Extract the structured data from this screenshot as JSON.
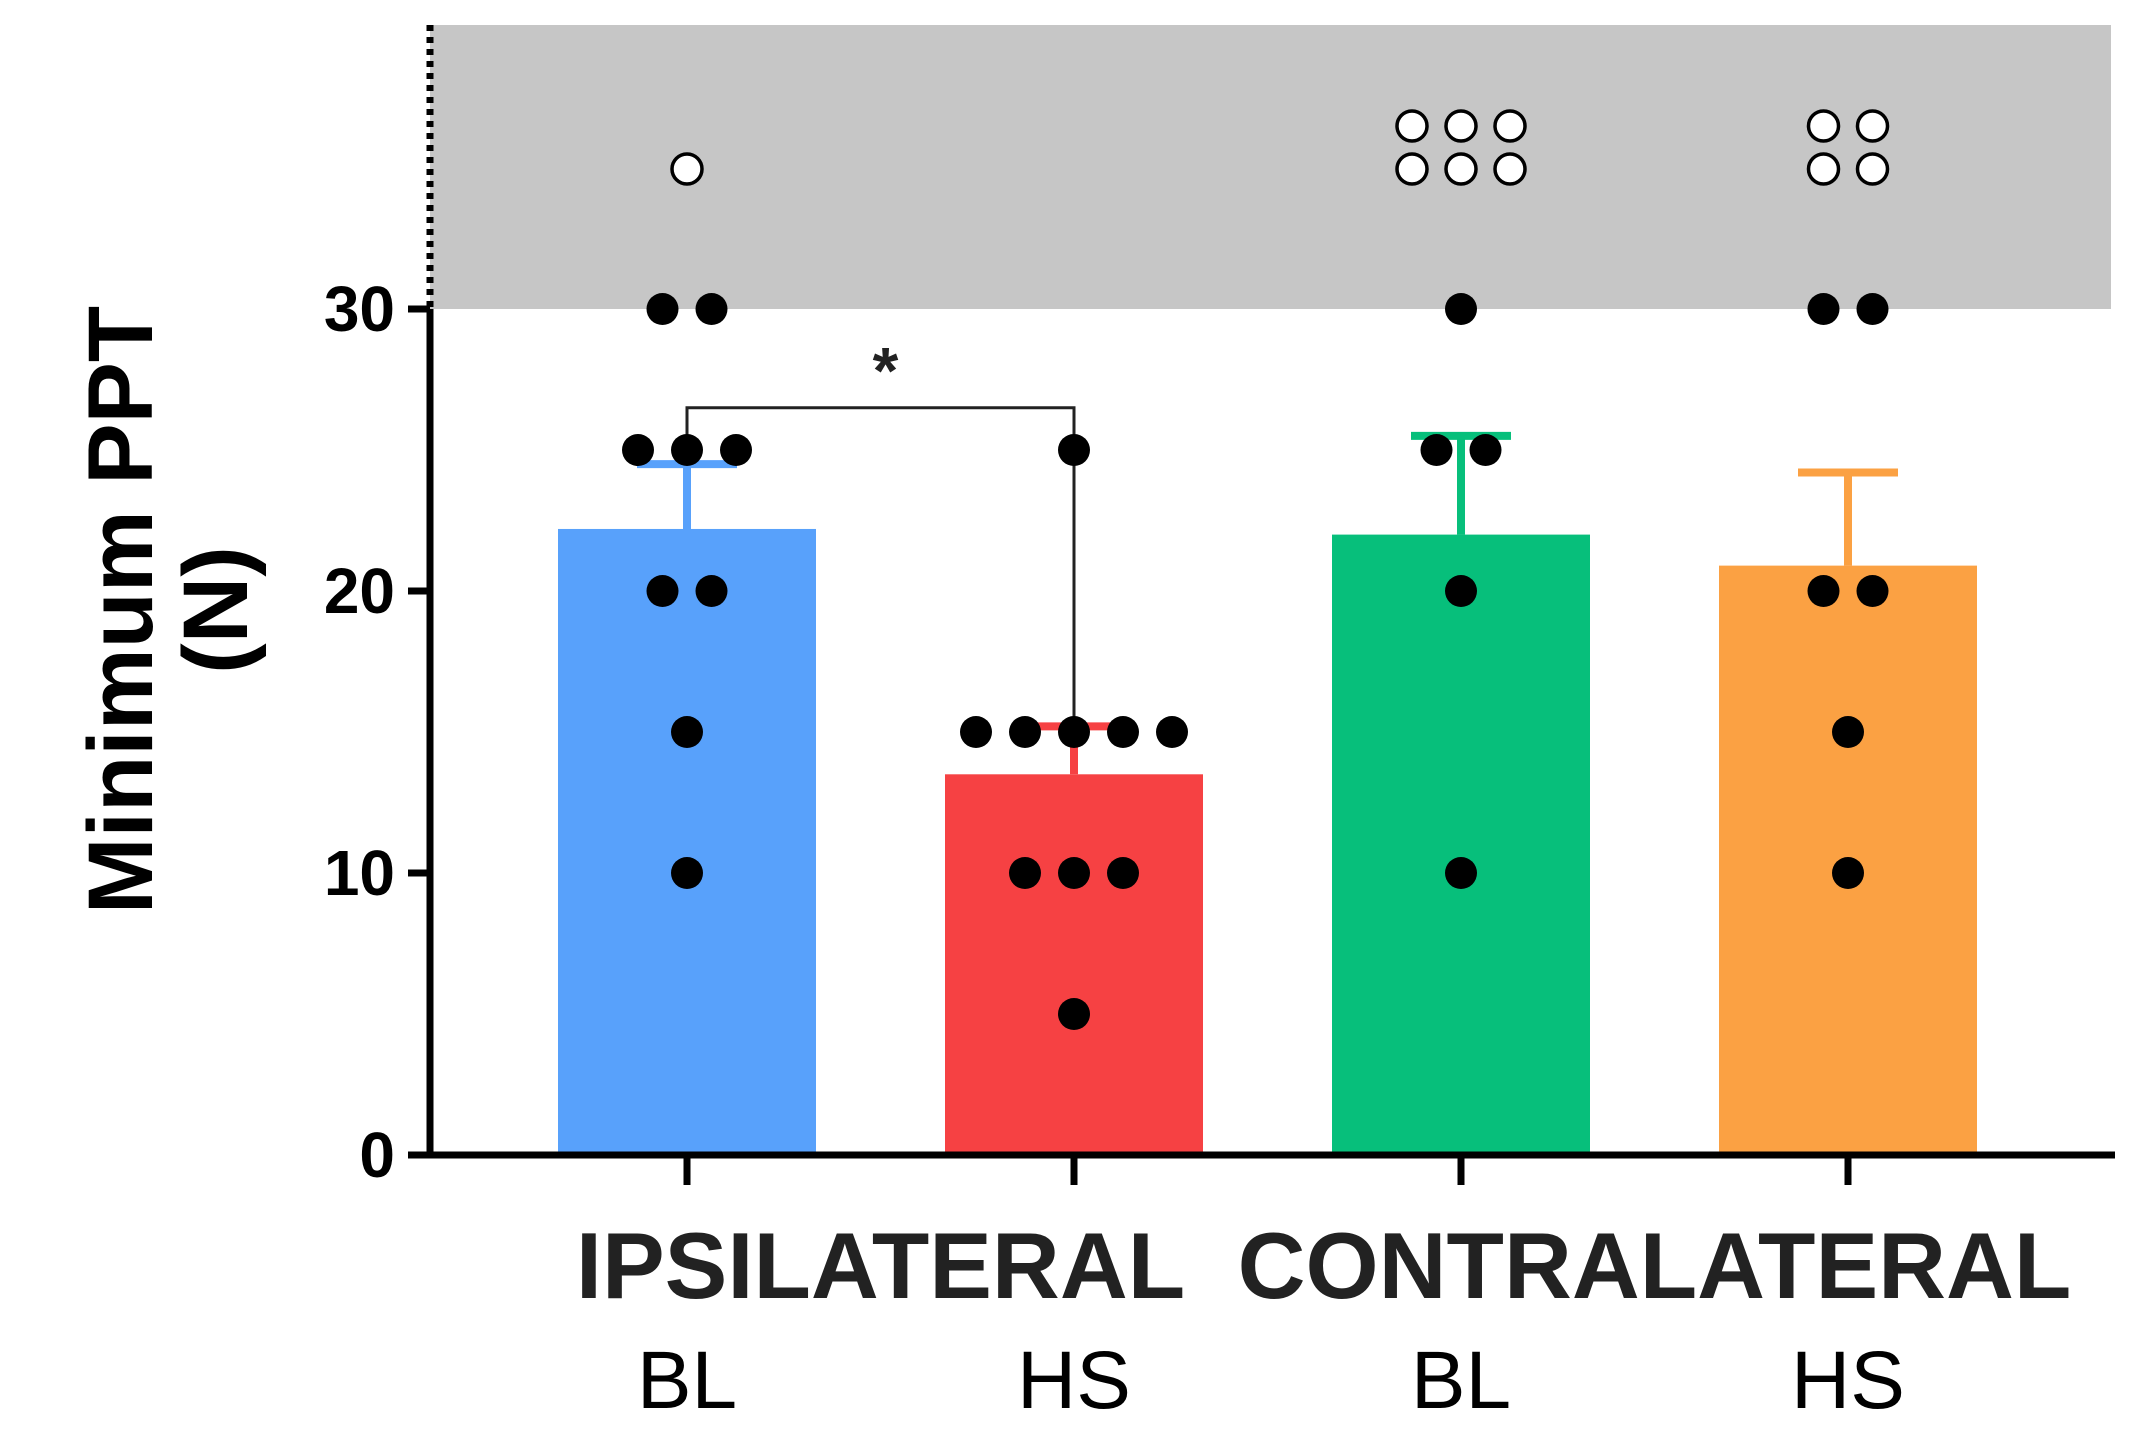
{
  "chart_data": {
    "type": "bar",
    "ylabel_lines": [
      "Minimum PPT",
      "(N)"
    ],
    "ylim": [
      0,
      40
    ],
    "yticks": [
      "0",
      "10",
      "20",
      "30"
    ],
    "censored_region": {
      "from": 30,
      "to": 40,
      "color": "#c6c6c6"
    },
    "groups": [
      "IPSILATERAL",
      "CONTRALATERAL"
    ],
    "categories": [
      "BL",
      "HS",
      "BL",
      "HS"
    ],
    "series": [
      {
        "name": "IPSILATERAL BL",
        "group": "IPSILATERAL",
        "category": "BL",
        "mean": 22.2,
        "sem_upper": 24.5,
        "color": "#58a1fb",
        "points": [
          10,
          15,
          20,
          20,
          25,
          25,
          25,
          30,
          30
        ],
        "censored": 1
      },
      {
        "name": "IPSILATERAL HS",
        "group": "IPSILATERAL",
        "category": "HS",
        "mean": 13.5,
        "sem_upper": 15.2,
        "color": "#f64143",
        "points": [
          5,
          10,
          10,
          10,
          15,
          15,
          15,
          15,
          15,
          25
        ],
        "censored": 0
      },
      {
        "name": "CONTRALATERAL BL",
        "group": "CONTRALATERAL",
        "category": "BL",
        "mean": 22.0,
        "sem_upper": 25.5,
        "color": "#07bf7b",
        "points": [
          10,
          20,
          25,
          25,
          30
        ],
        "censored": 6
      },
      {
        "name": "CONTRALATERAL HS",
        "group": "CONTRALATERAL",
        "category": "HS",
        "mean": 20.9,
        "sem_upper": 24.2,
        "color": "#fba143",
        "points": [
          10,
          15,
          20,
          20,
          30,
          30
        ],
        "censored": 4
      }
    ],
    "significance": [
      {
        "from": 0,
        "to": 1,
        "label": "*",
        "y": 26.5
      }
    ]
  }
}
